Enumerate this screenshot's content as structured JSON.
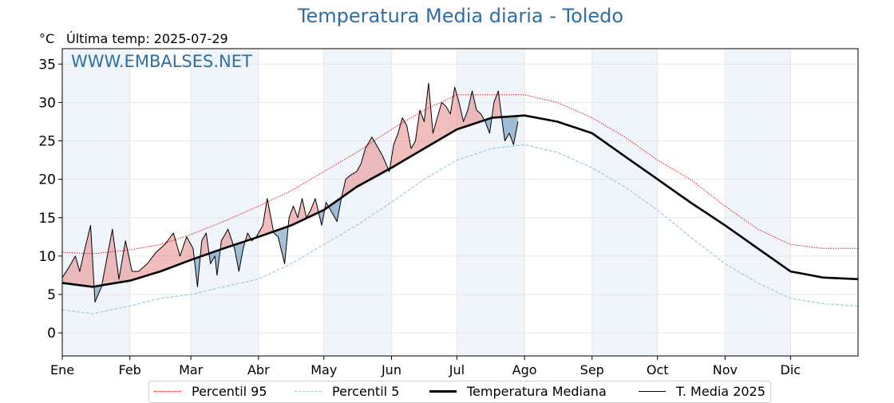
{
  "header": {
    "title": "Temperatura Media diaria - Toledo",
    "unit": "°C",
    "last_temp": "Última temp: 2025-07-29",
    "watermark": "WWW.EMBALSES.NET"
  },
  "legend": {
    "p95": "Percentil 95",
    "p5": "Percentil 5",
    "median": "Temperatura Mediana",
    "current": "T. Media 2025"
  },
  "colors": {
    "p95": "#e41a1c",
    "p5": "#9ecae1",
    "median": "#000000",
    "current": "#000000",
    "above": "#e88787",
    "below": "#5b8db8",
    "band": "#dce8f5",
    "title": "#2e6ea6"
  },
  "chart_data": {
    "type": "line",
    "title": "Temperatura Media diaria - Toledo",
    "ylabel": "°C",
    "xlim": [
      1,
      366
    ],
    "ylim": [
      -3,
      37
    ],
    "yticks": [
      0,
      5,
      10,
      15,
      20,
      25,
      30,
      35
    ],
    "months": [
      {
        "label": "Ene",
        "day": 1
      },
      {
        "label": "Feb",
        "day": 32
      },
      {
        "label": "Mar",
        "day": 60
      },
      {
        "label": "Abr",
        "day": 91
      },
      {
        "label": "May",
        "day": 121
      },
      {
        "label": "Jun",
        "day": 152
      },
      {
        "label": "Jul",
        "day": 182
      },
      {
        "label": "Ago",
        "day": 213
      },
      {
        "label": "Sep",
        "day": 244
      },
      {
        "label": "Oct",
        "day": 274
      },
      {
        "label": "Nov",
        "day": 305
      },
      {
        "label": "Dic",
        "day": 335
      }
    ],
    "grid": true,
    "legend_position": "bottom",
    "series": [
      {
        "name": "Percentil 95",
        "style": "dotted",
        "x": [
          1,
          15,
          32,
          46,
          60,
          75,
          91,
          106,
          121,
          136,
          152,
          167,
          182,
          198,
          213,
          228,
          244,
          259,
          274,
          289,
          305,
          320,
          335,
          350,
          366
        ],
        "y": [
          10.5,
          10.3,
          10.8,
          11.5,
          12.8,
          14.5,
          16.5,
          18.5,
          21.0,
          23.5,
          26.5,
          29.0,
          31.0,
          31.0,
          31.0,
          30.0,
          28.0,
          25.5,
          22.5,
          20.0,
          16.5,
          13.5,
          11.5,
          11.0,
          11.0
        ]
      },
      {
        "name": "Percentil 5",
        "style": "dashed",
        "x": [
          1,
          15,
          32,
          46,
          60,
          75,
          91,
          106,
          121,
          136,
          152,
          167,
          182,
          198,
          213,
          228,
          244,
          259,
          274,
          289,
          305,
          320,
          335,
          350,
          366
        ],
        "y": [
          3.0,
          2.5,
          3.5,
          4.5,
          5.0,
          6.0,
          7.0,
          9.0,
          11.5,
          14.0,
          17.0,
          20.0,
          22.5,
          24.0,
          24.5,
          23.5,
          21.5,
          19.0,
          16.0,
          12.5,
          9.0,
          6.5,
          4.5,
          3.8,
          3.5
        ]
      },
      {
        "name": "Temperatura Mediana",
        "style": "solid-thick",
        "x": [
          1,
          15,
          32,
          46,
          60,
          75,
          91,
          106,
          121,
          136,
          152,
          167,
          182,
          198,
          213,
          228,
          244,
          259,
          274,
          289,
          305,
          320,
          335,
          350,
          366
        ],
        "y": [
          6.5,
          6.0,
          6.8,
          8.0,
          9.5,
          11.0,
          12.5,
          14.0,
          16.0,
          19.0,
          21.5,
          24.0,
          26.5,
          28.0,
          28.3,
          27.5,
          26.0,
          23.0,
          20.0,
          17.0,
          14.0,
          11.0,
          8.0,
          7.2,
          7.0
        ]
      },
      {
        "name": "T. Media 2025",
        "style": "solid-thin",
        "x": [
          1,
          4,
          7,
          9,
          11,
          14,
          16,
          19,
          21,
          24,
          27,
          30,
          33,
          36,
          40,
          44,
          48,
          52,
          55,
          58,
          61,
          63,
          65,
          67,
          69,
          71,
          72,
          74,
          77,
          80,
          82,
          84,
          86,
          88,
          90,
          93,
          95,
          98,
          100,
          103,
          105,
          107,
          109,
          111,
          113,
          115,
          117,
          120,
          122,
          124,
          127,
          129,
          131,
          133,
          136,
          138,
          140,
          143,
          146,
          148,
          151,
          153,
          155,
          157,
          159,
          161,
          163,
          165,
          167,
          169,
          171,
          173,
          175,
          177,
          179,
          181,
          183,
          185,
          187,
          189,
          191,
          193,
          195,
          197,
          199,
          201,
          203,
          204,
          206,
          208,
          210
        ],
        "y": [
          7.2,
          8.5,
          10.0,
          8.0,
          10.5,
          14.0,
          4.0,
          6.0,
          9.0,
          13.5,
          7.0,
          12.0,
          8.0,
          8.0,
          9.0,
          10.5,
          11.5,
          13.0,
          10.0,
          12.5,
          11.0,
          6.0,
          12.0,
          13.0,
          9.0,
          10.0,
          7.5,
          12.0,
          13.5,
          11.0,
          8.0,
          11.0,
          13.0,
          12.0,
          12.5,
          14.0,
          17.5,
          13.0,
          12.5,
          9.0,
          15.0,
          16.5,
          15.0,
          17.5,
          15.0,
          16.0,
          17.5,
          14.0,
          17.0,
          16.0,
          14.5,
          17.5,
          20.0,
          20.5,
          21.0,
          22.0,
          24.0,
          25.5,
          24.0,
          23.0,
          21.0,
          24.5,
          26.0,
          28.0,
          27.0,
          24.0,
          25.0,
          29.0,
          27.5,
          32.5,
          26.0,
          28.0,
          30.0,
          29.5,
          28.5,
          32.0,
          30.0,
          27.5,
          29.0,
          31.5,
          29.0,
          28.5,
          27.5,
          26.0,
          30.0,
          31.5,
          27.0,
          25.0,
          26.0,
          24.5,
          27.5
        ]
      }
    ]
  }
}
